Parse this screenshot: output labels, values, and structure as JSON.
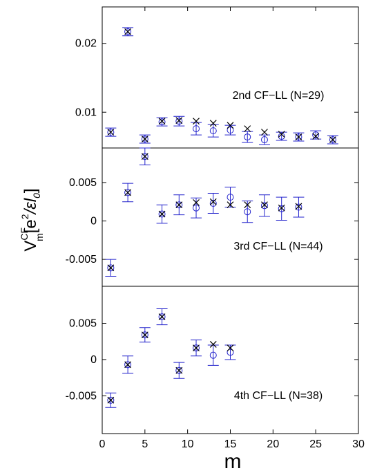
{
  "chart_data": {
    "type": "scatter",
    "xlabel": "m",
    "ylabel": {
      "base": "V",
      "superscript": "CF",
      "subscript": "m",
      "bracket_open": "[e",
      "power": "2",
      "slash_eps": "/εl",
      "l_subscript": "0",
      "bracket_close": "]"
    },
    "xlim": [
      0,
      30
    ],
    "xticks": [
      "0",
      "5",
      "10",
      "15",
      "20",
      "25",
      "30"
    ],
    "colors": {
      "errorbar_circle": "#2222cc",
      "cross": "#000000",
      "axis": "#000000"
    },
    "panels": [
      {
        "label": "2nd CF−LL (N=29)",
        "ylim": [
          0.0048,
          0.0253
        ],
        "yticks": [
          {
            "value": 0.01,
            "label": "0.01"
          },
          {
            "value": 0.02,
            "label": "0.02"
          }
        ],
        "points": [
          {
            "m": 1,
            "circle": 0.0071,
            "err": 0.0006,
            "cross": 0.0071
          },
          {
            "m": 3,
            "circle": 0.0217,
            "err": 0.0006,
            "cross": 0.0217
          },
          {
            "m": 5,
            "circle": 0.0061,
            "err": 0.0006,
            "cross": 0.0061
          },
          {
            "m": 7,
            "circle": 0.0086,
            "err": 0.0006,
            "cross": 0.0087
          },
          {
            "m": 9,
            "circle": 0.0087,
            "err": 0.0007,
            "cross": 0.0088
          },
          {
            "m": 11,
            "circle": 0.0076,
            "err": 0.0009,
            "cross": 0.0087
          },
          {
            "m": 13,
            "circle": 0.0073,
            "err": 0.0009,
            "cross": 0.0084
          },
          {
            "m": 15,
            "circle": 0.0074,
            "err": 0.0007,
            "cross": 0.0081
          },
          {
            "m": 17,
            "circle": 0.0064,
            "err": 0.0008,
            "cross": 0.0076
          },
          {
            "m": 19,
            "circle": 0.006,
            "err": 0.0007,
            "cross": 0.0071
          },
          {
            "m": 21,
            "circle": 0.0065,
            "err": 0.0006,
            "cross": 0.0068
          },
          {
            "m": 23,
            "circle": 0.0064,
            "err": 0.0006,
            "cross": 0.0064
          },
          {
            "m": 25,
            "circle": 0.0067,
            "err": 0.0006,
            "cross": 0.0065
          },
          {
            "m": 27,
            "circle": 0.006,
            "err": 0.0006,
            "cross": 0.006
          }
        ]
      },
      {
        "label": "3rd CF−LL (N=44)",
        "ylim": [
          -0.0085,
          0.0095
        ],
        "yticks": [
          {
            "value": 0.005,
            "label": "0.005"
          },
          {
            "value": 0,
            "label": "0"
          },
          {
            "value": -0.005,
            "label": "-0.005"
          }
        ],
        "points": [
          {
            "m": 1,
            "circle": -0.0061,
            "err": 0.0011,
            "cross": -0.0061
          },
          {
            "m": 3,
            "circle": 0.0037,
            "err": 0.0012,
            "cross": 0.0037
          },
          {
            "m": 5,
            "circle": 0.0084,
            "err": 0.0011,
            "cross": 0.0084
          },
          {
            "m": 7,
            "circle": 0.0009,
            "err": 0.0012,
            "cross": 0.0009
          },
          {
            "m": 9,
            "circle": 0.0021,
            "err": 0.0013,
            "cross": 0.0021
          },
          {
            "m": 11,
            "circle": 0.0017,
            "err": 0.0013,
            "cross": 0.0024
          },
          {
            "m": 13,
            "circle": 0.0023,
            "err": 0.0013,
            "cross": 0.0025
          },
          {
            "m": 15,
            "circle": 0.0031,
            "err": 0.0013,
            "cross": 0.0021
          },
          {
            "m": 17,
            "circle": 0.0012,
            "err": 0.0014,
            "cross": 0.0021
          },
          {
            "m": 19,
            "circle": 0.002,
            "err": 0.0014,
            "cross": 0.0021
          },
          {
            "m": 21,
            "circle": 0.0016,
            "err": 0.0015,
            "cross": 0.0017
          },
          {
            "m": 23,
            "circle": 0.0018,
            "err": 0.0013,
            "cross": 0.0019
          }
        ]
      },
      {
        "label": "4th CF−LL (N=38)",
        "ylim": [
          -0.0102,
          0.0101
        ],
        "yticks": [
          {
            "value": 0.005,
            "label": "0.005"
          },
          {
            "value": 0,
            "label": "0"
          },
          {
            "value": -0.005,
            "label": "-0.005"
          }
        ],
        "points": [
          {
            "m": 1,
            "circle": -0.0056,
            "err": 0.001,
            "cross": -0.0056
          },
          {
            "m": 3,
            "circle": -0.0007,
            "err": 0.0012,
            "cross": -0.0007
          },
          {
            "m": 5,
            "circle": 0.0034,
            "err": 0.001,
            "cross": 0.0034
          },
          {
            "m": 7,
            "circle": 0.0059,
            "err": 0.0011,
            "cross": 0.0059
          },
          {
            "m": 9,
            "circle": -0.0015,
            "err": 0.0011,
            "cross": -0.0015
          },
          {
            "m": 11,
            "circle": 0.0016,
            "err": 0.0011,
            "cross": 0.0016
          },
          {
            "m": 13,
            "circle": 0.0006,
            "err": 0.0014,
            "cross": 0.0021
          },
          {
            "m": 15,
            "circle": 0.001,
            "err": 0.001,
            "cross": 0.0016
          }
        ]
      }
    ]
  }
}
